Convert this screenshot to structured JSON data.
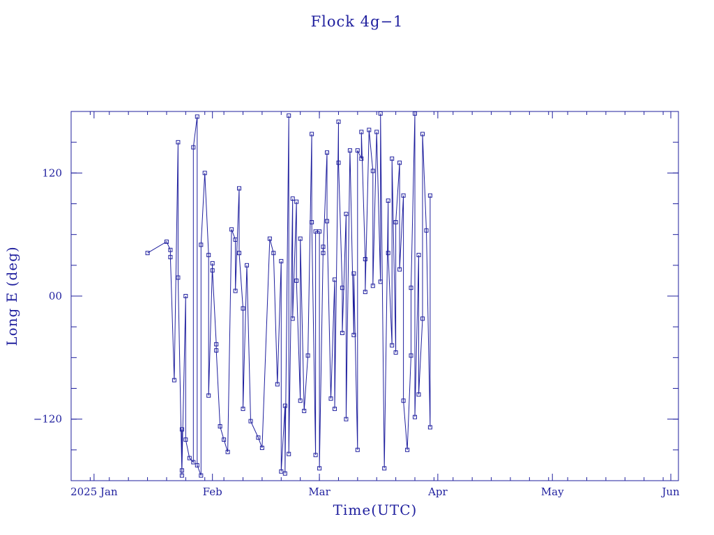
{
  "chart_data": {
    "type": "line",
    "title": "Flock 4g−1",
    "xlabel": "Time(UTC)",
    "ylabel": "Long E (deg)",
    "xlim": [
      "2024-12-26",
      "2025-06-03"
    ],
    "ylim": [
      -180,
      180
    ],
    "x_ticks": [
      {
        "label": "2025 Jan",
        "date": "2025-01-01"
      },
      {
        "label": "Feb",
        "date": "2025-02-01"
      },
      {
        "label": "Mar",
        "date": "2025-03-01"
      },
      {
        "label": "Apr",
        "date": "2025-04-01"
      },
      {
        "label": "May",
        "date": "2025-05-01"
      },
      {
        "label": "Jun",
        "date": "2025-06-01"
      }
    ],
    "y_ticks": [
      {
        "label": "−120",
        "value": -120
      },
      {
        "label": "00",
        "value": 0
      },
      {
        "label": "120",
        "value": 120
      }
    ],
    "grid": false,
    "color": "#1f1f9e",
    "series": [
      {
        "points": [
          [
            "2025-01-15",
            42
          ],
          [
            "2025-01-20",
            53
          ],
          [
            "2025-01-21",
            45
          ],
          [
            "2025-01-21",
            38
          ],
          [
            "2025-01-22",
            -82
          ],
          [
            "2025-01-23",
            150
          ],
          [
            "2025-01-23",
            18
          ],
          [
            "2025-01-24",
            -175
          ],
          [
            "2025-01-24",
            -130
          ],
          [
            "2025-01-24",
            -170
          ],
          [
            "2025-01-25",
            0
          ],
          [
            "2025-01-25",
            -140
          ],
          [
            "2025-01-26",
            -158
          ],
          [
            "2025-01-27",
            -162
          ],
          [
            "2025-01-27",
            145
          ],
          [
            "2025-01-28",
            175
          ],
          [
            "2025-01-28",
            -165
          ],
          [
            "2025-01-29",
            -175
          ],
          [
            "2025-01-29",
            50
          ],
          [
            "2025-01-30",
            120
          ],
          [
            "2025-01-31",
            40
          ],
          [
            "2025-01-31",
            -97
          ],
          [
            "2025-02-01",
            32
          ],
          [
            "2025-02-01",
            25
          ],
          [
            "2025-02-02",
            -47
          ],
          [
            "2025-02-02",
            -53
          ],
          [
            "2025-02-03",
            -127
          ],
          [
            "2025-02-04",
            -140
          ],
          [
            "2025-02-05",
            -152
          ],
          [
            "2025-02-06",
            65
          ],
          [
            "2025-02-07",
            55
          ],
          [
            "2025-02-07",
            5
          ],
          [
            "2025-02-08",
            105
          ],
          [
            "2025-02-08",
            42
          ],
          [
            "2025-02-09",
            -12
          ],
          [
            "2025-02-09",
            -110
          ],
          [
            "2025-02-10",
            30
          ],
          [
            "2025-02-11",
            -122
          ],
          [
            "2025-02-13",
            -138
          ],
          [
            "2025-02-14",
            -148
          ],
          [
            "2025-02-16",
            56
          ],
          [
            "2025-02-17",
            42
          ],
          [
            "2025-02-18",
            -86
          ],
          [
            "2025-02-19",
            34
          ],
          [
            "2025-02-19",
            -171
          ],
          [
            "2025-02-20",
            -107
          ],
          [
            "2025-02-20",
            -173
          ],
          [
            "2025-02-21",
            176
          ],
          [
            "2025-02-21",
            -154
          ],
          [
            "2025-02-22",
            95
          ],
          [
            "2025-02-22",
            -22
          ],
          [
            "2025-02-23",
            92
          ],
          [
            "2025-02-23",
            15
          ],
          [
            "2025-02-24",
            -102
          ],
          [
            "2025-02-24",
            56
          ],
          [
            "2025-02-25",
            -112
          ],
          [
            "2025-02-26",
            -58
          ],
          [
            "2025-02-27",
            158
          ],
          [
            "2025-02-27",
            72
          ],
          [
            "2025-02-28",
            -155
          ],
          [
            "2025-02-28",
            63
          ],
          [
            "2025-03-01",
            63
          ],
          [
            "2025-03-01",
            -168
          ],
          [
            "2025-03-02",
            48
          ],
          [
            "2025-03-02",
            42
          ],
          [
            "2025-03-03",
            140
          ],
          [
            "2025-03-03",
            73
          ],
          [
            "2025-03-04",
            -100
          ],
          [
            "2025-03-05",
            16
          ],
          [
            "2025-03-05",
            -110
          ],
          [
            "2025-03-06",
            170
          ],
          [
            "2025-03-06",
            130
          ],
          [
            "2025-03-07",
            8
          ],
          [
            "2025-03-07",
            -36
          ],
          [
            "2025-03-08",
            80
          ],
          [
            "2025-03-08",
            -120
          ],
          [
            "2025-03-09",
            142
          ],
          [
            "2025-03-10",
            -38
          ],
          [
            "2025-03-10",
            22
          ],
          [
            "2025-03-11",
            -150
          ],
          [
            "2025-03-11",
            142
          ],
          [
            "2025-03-12",
            134
          ],
          [
            "2025-03-12",
            160
          ],
          [
            "2025-03-13",
            36
          ],
          [
            "2025-03-13",
            4
          ],
          [
            "2025-03-14",
            162
          ],
          [
            "2025-03-15",
            122
          ],
          [
            "2025-03-15",
            10
          ],
          [
            "2025-03-16",
            160
          ],
          [
            "2025-03-17",
            14
          ],
          [
            "2025-03-17",
            178
          ],
          [
            "2025-03-18",
            -168
          ],
          [
            "2025-03-19",
            93
          ],
          [
            "2025-03-19",
            42
          ],
          [
            "2025-03-20",
            -48
          ],
          [
            "2025-03-20",
            134
          ],
          [
            "2025-03-21",
            -55
          ],
          [
            "2025-03-21",
            72
          ],
          [
            "2025-03-22",
            130
          ],
          [
            "2025-03-22",
            26
          ],
          [
            "2025-03-23",
            98
          ],
          [
            "2025-03-23",
            -102
          ],
          [
            "2025-03-24",
            -150
          ],
          [
            "2025-03-25",
            -58
          ],
          [
            "2025-03-25",
            8
          ],
          [
            "2025-03-26",
            178
          ],
          [
            "2025-03-26",
            -118
          ],
          [
            "2025-03-27",
            40
          ],
          [
            "2025-03-27",
            -96
          ],
          [
            "2025-03-28",
            -22
          ],
          [
            "2025-03-28",
            158
          ],
          [
            "2025-03-29",
            64
          ],
          [
            "2025-03-30",
            -128
          ],
          [
            "2025-03-30",
            98
          ]
        ]
      }
    ]
  }
}
